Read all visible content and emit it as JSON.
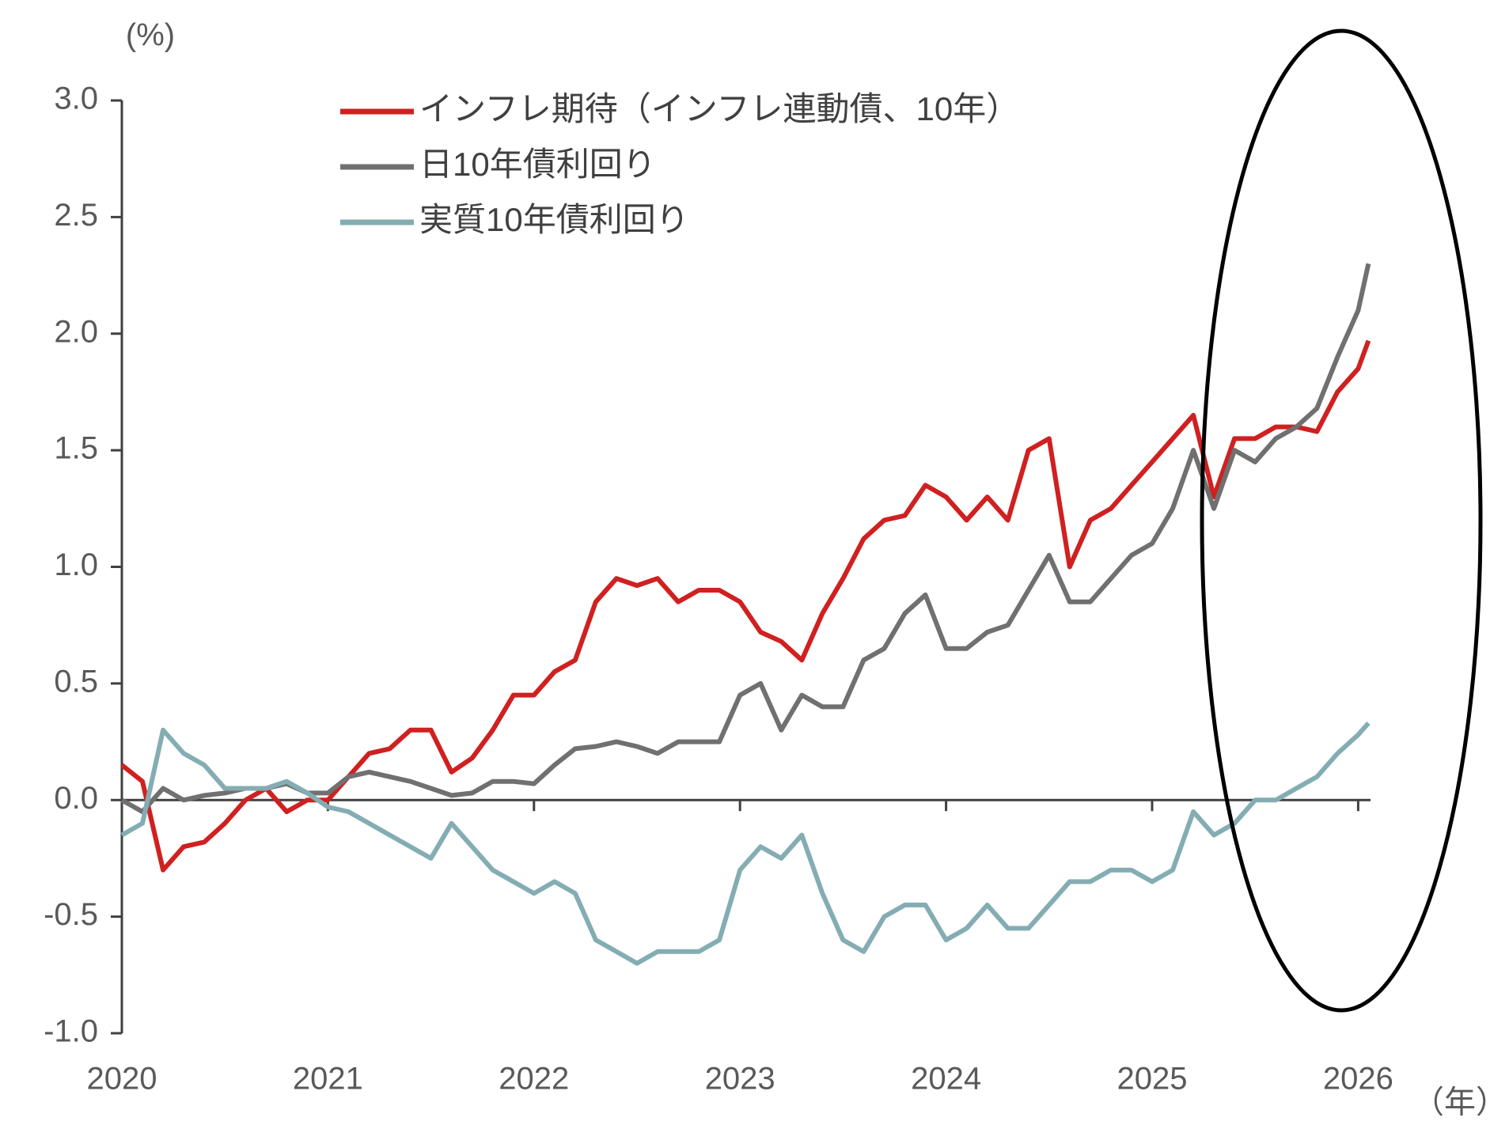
{
  "chart_data": {
    "type": "line",
    "y_label": "(%)",
    "x_label": "（年）",
    "x": [
      2020.0,
      2020.1,
      2020.2,
      2020.3,
      2020.4,
      2020.5,
      2020.6,
      2020.7,
      2020.8,
      2020.9,
      2021.0,
      2021.1,
      2021.2,
      2021.3,
      2021.4,
      2021.5,
      2021.6,
      2021.7,
      2021.8,
      2021.9,
      2022.0,
      2022.1,
      2022.2,
      2022.3,
      2022.4,
      2022.5,
      2022.6,
      2022.7,
      2022.8,
      2022.9,
      2023.0,
      2023.1,
      2023.2,
      2023.3,
      2023.4,
      2023.5,
      2023.6,
      2023.7,
      2023.8,
      2023.9,
      2024.0,
      2024.1,
      2024.2,
      2024.3,
      2024.4,
      2024.5,
      2024.6,
      2024.7,
      2024.8,
      2024.9,
      2025.0,
      2025.1,
      2025.2,
      2025.3,
      2025.4,
      2025.5,
      2025.6,
      2025.7,
      2025.8,
      2025.9,
      2026.0,
      2026.05
    ],
    "series": [
      {
        "name": "インフレ期待（インフレ連動債、10年）",
        "color": "#d02020",
        "values": [
          0.15,
          0.08,
          -0.3,
          -0.2,
          -0.18,
          -0.1,
          0.0,
          0.05,
          -0.05,
          0.0,
          0.0,
          0.1,
          0.2,
          0.22,
          0.3,
          0.3,
          0.12,
          0.18,
          0.3,
          0.45,
          0.45,
          0.55,
          0.6,
          0.85,
          0.95,
          0.92,
          0.95,
          0.85,
          0.9,
          0.9,
          0.85,
          0.72,
          0.68,
          0.6,
          0.8,
          0.95,
          1.12,
          1.2,
          1.22,
          1.35,
          1.3,
          1.2,
          1.3,
          1.2,
          1.5,
          1.55,
          1.0,
          1.2,
          1.25,
          1.35,
          1.45,
          1.55,
          1.65,
          1.3,
          1.55,
          1.55,
          1.6,
          1.6,
          1.58,
          1.75,
          1.85,
          1.97
        ]
      },
      {
        "name": "日10年債利回り",
        "color": "#707070",
        "values": [
          0.0,
          -0.05,
          0.05,
          0.0,
          0.02,
          0.03,
          0.05,
          0.05,
          0.07,
          0.03,
          0.03,
          0.1,
          0.12,
          0.1,
          0.08,
          0.05,
          0.02,
          0.03,
          0.08,
          0.08,
          0.07,
          0.15,
          0.22,
          0.23,
          0.25,
          0.23,
          0.2,
          0.25,
          0.25,
          0.25,
          0.45,
          0.5,
          0.3,
          0.45,
          0.4,
          0.4,
          0.6,
          0.65,
          0.8,
          0.88,
          0.65,
          0.65,
          0.72,
          0.75,
          0.9,
          1.05,
          0.85,
          0.85,
          0.95,
          1.05,
          1.1,
          1.25,
          1.5,
          1.25,
          1.5,
          1.45,
          1.55,
          1.6,
          1.68,
          1.9,
          2.1,
          2.3
        ]
      },
      {
        "name": "実質10年債利回り",
        "color": "#84adb3",
        "values": [
          -0.15,
          -0.1,
          0.3,
          0.2,
          0.15,
          0.05,
          0.05,
          0.05,
          0.08,
          0.03,
          -0.03,
          -0.05,
          -0.1,
          -0.15,
          -0.2,
          -0.25,
          -0.1,
          -0.2,
          -0.3,
          -0.35,
          -0.4,
          -0.35,
          -0.4,
          -0.6,
          -0.65,
          -0.7,
          -0.65,
          -0.65,
          -0.65,
          -0.6,
          -0.3,
          -0.2,
          -0.25,
          -0.15,
          -0.4,
          -0.6,
          -0.65,
          -0.5,
          -0.45,
          -0.45,
          -0.6,
          -0.55,
          -0.45,
          -0.55,
          -0.55,
          -0.45,
          -0.35,
          -0.35,
          -0.3,
          -0.3,
          -0.35,
          -0.3,
          -0.05,
          -0.15,
          -0.1,
          0.0,
          0.0,
          0.05,
          0.1,
          0.2,
          0.28,
          0.33
        ]
      }
    ],
    "xlim": [
      2020,
      2026.06
    ],
    "xticks": [
      2020,
      2021,
      2022,
      2023,
      2024,
      2025,
      2026
    ],
    "ylim": [
      -1.0,
      3.0
    ],
    "yticks": [
      {
        "value": -1.0,
        "label": "-1.0"
      },
      {
        "value": -0.5,
        "label": "-0.5"
      },
      {
        "value": 0.0,
        "label": "0.0"
      },
      {
        "value": 0.5,
        "label": "0.5"
      },
      {
        "value": 1.0,
        "label": "1.0"
      },
      {
        "value": 1.5,
        "label": "1.5"
      },
      {
        "value": 2.0,
        "label": "2.0"
      },
      {
        "value": 2.5,
        "label": "2.5"
      },
      {
        "value": 3.0,
        "label": "3.0"
      }
    ],
    "grid": false
  }
}
